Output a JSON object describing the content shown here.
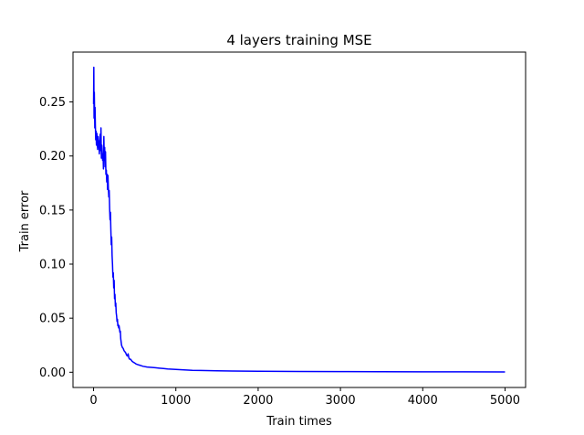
{
  "chart_data": {
    "type": "line",
    "title": "4 layers training MSE",
    "xlabel": "Train times",
    "ylabel": "Train error",
    "xlim": [
      -250,
      5250
    ],
    "ylim": [
      -0.0141,
      0.2961
    ],
    "xticks": [
      0,
      1000,
      2000,
      3000,
      4000,
      5000
    ],
    "yticks": [
      0.0,
      0.05,
      0.1,
      0.15,
      0.2,
      0.25
    ],
    "xtick_labels": [
      "0",
      "1000",
      "2000",
      "3000",
      "4000",
      "5000"
    ],
    "ytick_labels": [
      "0.00",
      "0.05",
      "0.10",
      "0.15",
      "0.20",
      "0.25"
    ],
    "grid": false,
    "legend": "none",
    "series": [
      {
        "color": "#0000ff",
        "x": [
          0,
          3,
          6,
          9,
          12,
          15,
          18,
          22,
          26,
          30,
          35,
          40,
          45,
          50,
          55,
          60,
          65,
          70,
          75,
          80,
          85,
          90,
          95,
          100,
          105,
          110,
          115,
          120,
          125,
          130,
          135,
          140,
          145,
          150,
          155,
          160,
          165,
          170,
          175,
          180,
          185,
          190,
          195,
          200,
          205,
          210,
          215,
          220,
          225,
          230,
          235,
          240,
          245,
          250,
          255,
          260,
          265,
          270,
          275,
          280,
          285,
          290,
          295,
          300,
          305,
          310,
          315,
          320,
          325,
          330,
          340,
          350,
          360,
          370,
          380,
          390,
          400,
          410,
          420,
          430,
          440,
          450,
          460,
          470,
          480,
          500,
          520,
          540,
          560,
          580,
          600,
          650,
          700,
          750,
          800,
          850,
          900,
          1000,
          1100,
          1200,
          1300,
          1500,
          1700,
          2000,
          2500,
          3000,
          3500,
          4000,
          4500,
          5000
        ],
        "y": [
          0.248,
          0.282,
          0.235,
          0.259,
          0.242,
          0.226,
          0.245,
          0.228,
          0.215,
          0.223,
          0.21,
          0.221,
          0.212,
          0.206,
          0.218,
          0.208,
          0.214,
          0.202,
          0.212,
          0.22,
          0.205,
          0.226,
          0.198,
          0.21,
          0.202,
          0.196,
          0.202,
          0.188,
          0.218,
          0.196,
          0.208,
          0.19,
          0.204,
          0.183,
          0.187,
          0.176,
          0.183,
          0.169,
          0.182,
          0.17,
          0.162,
          0.168,
          0.152,
          0.141,
          0.148,
          0.132,
          0.118,
          0.125,
          0.108,
          0.1,
          0.088,
          0.092,
          0.078,
          0.085,
          0.068,
          0.072,
          0.061,
          0.064,
          0.055,
          0.052,
          0.047,
          0.049,
          0.043,
          0.044,
          0.041,
          0.043,
          0.04,
          0.037,
          0.038,
          0.031,
          0.025,
          0.023,
          0.022,
          0.02,
          0.019,
          0.018,
          0.016,
          0.015,
          0.017,
          0.013,
          0.012,
          0.012,
          0.011,
          0.01,
          0.0095,
          0.0085,
          0.0075,
          0.007,
          0.0065,
          0.006,
          0.0055,
          0.0048,
          0.0045,
          0.0042,
          0.0038,
          0.0034,
          0.003,
          0.0026,
          0.0022,
          0.0018,
          0.0016,
          0.0013,
          0.0011,
          0.0009,
          0.0007,
          0.0006,
          0.0005,
          0.0004,
          0.0004,
          0.0003
        ]
      }
    ]
  }
}
